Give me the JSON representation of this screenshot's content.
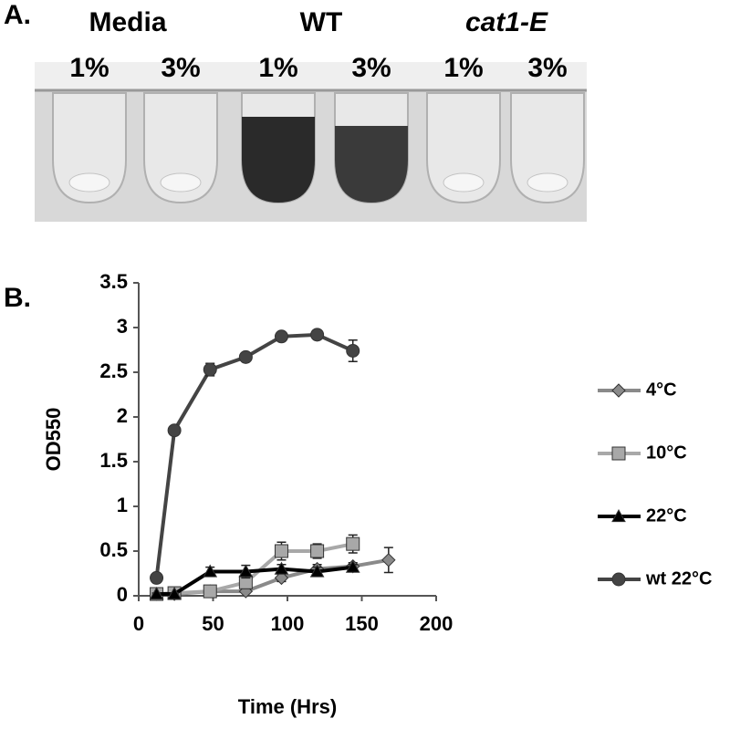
{
  "panel_a": {
    "label": "A.",
    "groups": [
      {
        "name": "Media",
        "concentrations": [
          "1%",
          "3%"
        ]
      },
      {
        "name": "WT",
        "concentrations": [
          "1%",
          "3%"
        ]
      },
      {
        "name": "cat1-E",
        "concentrations": [
          "1%",
          "3%"
        ]
      }
    ]
  },
  "chart_data": {
    "type": "line",
    "panel_label": "B.",
    "xlabel": "Time (Hrs)",
    "ylabel": "OD550",
    "xlim": [
      0,
      200
    ],
    "xticks": [
      0,
      50,
      100,
      150,
      200
    ],
    "ylim": [
      0,
      3.5
    ],
    "yticks": [
      0,
      0.5,
      1,
      1.5,
      2,
      2.5,
      3,
      3.5
    ],
    "legend": "right",
    "series": [
      {
        "name": "4°C",
        "color": "#8a8a8a",
        "marker": "diamond",
        "x": [
          12,
          24,
          48,
          72,
          96,
          120,
          144,
          168
        ],
        "values": [
          0.02,
          0.02,
          0.05,
          0.05,
          0.2,
          0.3,
          0.33,
          0.4
        ],
        "errors": [
          0.01,
          0.01,
          0.02,
          0.02,
          0.04,
          0.05,
          0.04,
          0.14
        ]
      },
      {
        "name": "10°C",
        "color": "#a8a8a8",
        "marker": "square",
        "x": [
          12,
          24,
          48,
          72,
          96,
          120,
          144
        ],
        "values": [
          0.02,
          0.03,
          0.05,
          0.15,
          0.5,
          0.5,
          0.58
        ],
        "errors": [
          0.01,
          0.01,
          0.02,
          0.05,
          0.1,
          0.08,
          0.1
        ]
      },
      {
        "name": "22°C",
        "color": "#000000",
        "marker": "triangle",
        "x": [
          12,
          24,
          48,
          72,
          96,
          120,
          144
        ],
        "values": [
          0.02,
          0.02,
          0.27,
          0.27,
          0.3,
          0.27,
          0.32
        ],
        "errors": [
          0.01,
          0.01,
          0.05,
          0.07,
          0.05,
          0.05,
          0.03
        ]
      },
      {
        "name": "wt 22°C",
        "color": "#444444",
        "marker": "circle",
        "x": [
          12,
          24,
          48,
          72,
          96,
          120,
          144
        ],
        "values": [
          0.2,
          1.85,
          2.53,
          2.67,
          2.9,
          2.92,
          2.74
        ],
        "errors": [
          0.02,
          0.02,
          0.07,
          0.03,
          0.03,
          0.05,
          0.12
        ]
      }
    ]
  }
}
